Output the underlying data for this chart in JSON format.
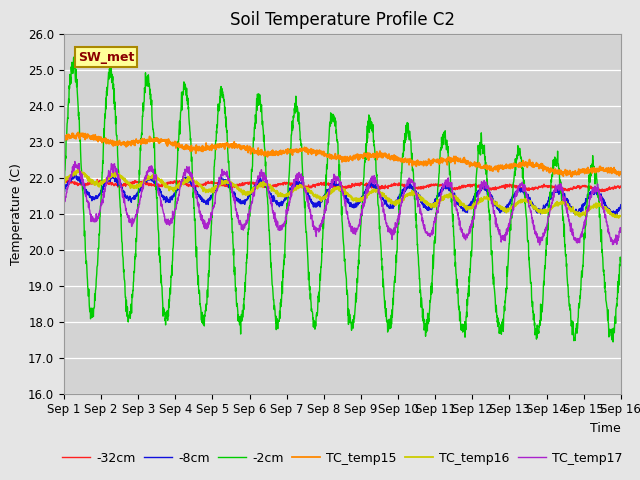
{
  "title": "Soil Temperature Profile C2",
  "xlabel": "Time",
  "ylabel": "Temperature (C)",
  "ylim": [
    16.0,
    26.0
  ],
  "yticks": [
    16.0,
    17.0,
    18.0,
    19.0,
    20.0,
    21.0,
    22.0,
    23.0,
    24.0,
    25.0,
    26.0
  ],
  "xtick_labels": [
    "Sep 1",
    "Sep 2",
    "Sep 3",
    "Sep 4",
    "Sep 5",
    "Sep 6",
    "Sep 7",
    "Sep 8",
    "Sep 9",
    "Sep 10",
    "Sep 11",
    "Sep 12",
    "Sep 13",
    "Sep 14",
    "Sep 15",
    "Sep 16"
  ],
  "n_days": 15,
  "pts_per_day": 144,
  "legend_labels": [
    "-32cm",
    "-8cm",
    "-2cm",
    "TC_temp15",
    "TC_temp16",
    "TC_temp17"
  ],
  "sw_met_label": "SW_met",
  "bg_color": "#e5e5e5",
  "plot_bg_color": "#d3d3d3",
  "title_fontsize": 12,
  "axis_label_fontsize": 9,
  "tick_fontsize": 8.5,
  "legend_fontsize": 9
}
